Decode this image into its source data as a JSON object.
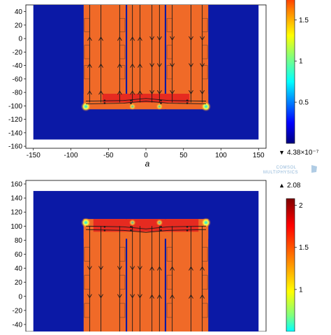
{
  "watermark": {
    "line1": "COMSOL",
    "line2": "MULTIPHYSICS"
  },
  "colormap": [
    "#00007f",
    "#0000ff",
    "#00ffff",
    "#7fff7f",
    "#ffff00",
    "#ff7f00",
    "#ff0000",
    "#7f0000"
  ],
  "colors": {
    "background_region": "#0b19a6",
    "core": "#f06a28",
    "core_hot": "#e62a20",
    "streamline": "#1a1a1a"
  },
  "chart_data": [
    {
      "type": "heatmap",
      "title": "",
      "panel_label": "a",
      "xlabel": "",
      "ylabel": "",
      "x_ticks": [
        "-150",
        "-100",
        "-50",
        "0",
        "50",
        "100",
        "150"
      ],
      "y_ticks": [
        "-160",
        "-140",
        "-120",
        "-100",
        "-80",
        "-60",
        "-40",
        "-20",
        "0",
        "20",
        "40"
      ],
      "xlim": [
        -160,
        160
      ],
      "ylim": [
        -163,
        50
      ],
      "domain": {
        "x": [
          -150,
          150
        ],
        "y": [
          -150,
          50
        ]
      },
      "core": {
        "left_leg": [
          -83,
          -27
        ],
        "center_leg": [
          -25,
          25
        ],
        "right_leg": [
          27,
          83
        ],
        "yoke_y": [
          -105,
          -82
        ],
        "slot_bottom": -82
      },
      "hot_zone": {
        "x": [
          -58,
          58
        ],
        "y": [
          -95,
          -82
        ]
      },
      "colorbar": {
        "ticks": [
          0.5,
          1,
          1.5
        ],
        "tick_labels": [
          "0.5",
          "1",
          "1.5"
        ],
        "range": [
          0,
          2.08
        ],
        "min_label": "4.38×10⁻⁷",
        "min_marker": "▼"
      }
    },
    {
      "type": "heatmap",
      "title": "",
      "xlabel": "",
      "ylabel": "",
      "y_ticks": [
        "-40",
        "-20",
        "0",
        "20",
        "40",
        "60",
        "80",
        "100",
        "120",
        "140",
        "160"
      ],
      "xlim": [
        -160,
        160
      ],
      "ylim": [
        -50,
        165
      ],
      "domain": {
        "x": [
          -150,
          150
        ],
        "y": [
          -50,
          150
        ]
      },
      "core": {
        "left_leg": [
          -83,
          -27
        ],
        "center_leg": [
          -25,
          25
        ],
        "right_leg": [
          27,
          83
        ],
        "yoke_y": [
          82,
          110
        ],
        "slot_top": 82
      },
      "hot_zone": {
        "x": [
          -70,
          70
        ],
        "y": [
          92,
          110
        ]
      },
      "colorbar": {
        "ticks": [
          1,
          1.5,
          2
        ],
        "tick_labels": [
          "1",
          "1.5",
          "2"
        ],
        "range": [
          0.5,
          2.08
        ],
        "max_label": "2.08",
        "max_marker": "▲"
      }
    }
  ]
}
